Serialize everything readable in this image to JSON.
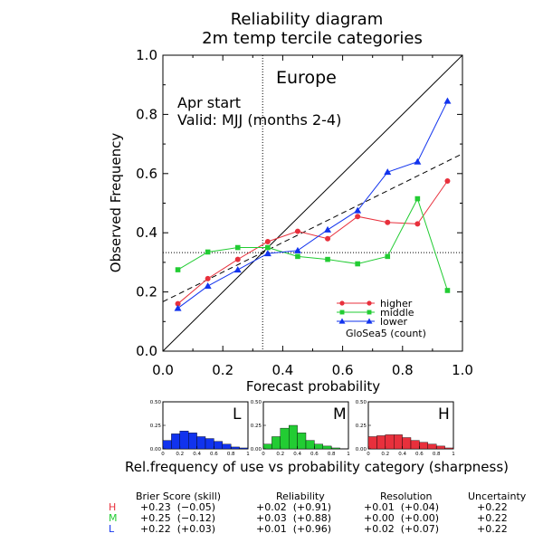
{
  "title_lines": [
    "Reliability diagram",
    "2m temp tercile categories"
  ],
  "region": "Europe",
  "annotation_lines": [
    "Apr start",
    "Valid: MJJ (months 2-4)"
  ],
  "xlabel": "Forecast probability",
  "ylabel": "Observed Frequency",
  "chart_data": {
    "type": "line",
    "xlim": [
      0,
      1
    ],
    "ylim": [
      0,
      1
    ],
    "xticks": [
      "0.0",
      "0.2",
      "0.4",
      "0.6",
      "0.8",
      "1.0"
    ],
    "yticks": [
      "0.0",
      "0.2",
      "0.4",
      "0.6",
      "0.8",
      "1.0"
    ],
    "climatology": 0.333,
    "no_skill_line": [
      [
        0.0,
        0.167
      ],
      [
        1.0,
        0.667
      ]
    ],
    "x": [
      0.05,
      0.15,
      0.25,
      0.35,
      0.45,
      0.55,
      0.65,
      0.75,
      0.85,
      0.95
    ],
    "series": [
      {
        "name": "higher",
        "color": "#e8303c",
        "marker": "circle",
        "values": [
          0.16,
          0.245,
          0.31,
          0.37,
          0.405,
          0.38,
          0.455,
          0.435,
          0.43,
          0.575
        ]
      },
      {
        "name": "middle",
        "color": "#22cc33",
        "marker": "square",
        "values": [
          0.275,
          0.335,
          0.35,
          0.35,
          0.32,
          0.31,
          0.295,
          0.32,
          0.515,
          0.205
        ]
      },
      {
        "name": "lower",
        "color": "#1133ee",
        "marker": "triangle",
        "values": [
          0.145,
          0.22,
          0.275,
          0.33,
          0.34,
          0.41,
          0.475,
          0.605,
          0.64,
          0.845
        ]
      }
    ],
    "legend_caption": "GloSea5 (count)",
    "histograms": [
      {
        "letter": "L",
        "color": "#1133ee",
        "values": [
          0.09,
          0.16,
          0.19,
          0.17,
          0.13,
          0.11,
          0.08,
          0.05,
          0.02,
          0.01
        ]
      },
      {
        "letter": "M",
        "color": "#22cc33",
        "values": [
          0.05,
          0.13,
          0.22,
          0.25,
          0.17,
          0.09,
          0.05,
          0.03,
          0.01,
          0.0
        ]
      },
      {
        "letter": "H",
        "color": "#e8303c",
        "values": [
          0.13,
          0.14,
          0.15,
          0.15,
          0.12,
          0.09,
          0.07,
          0.05,
          0.03,
          0.01
        ]
      }
    ],
    "hist_yticks": [
      "0.50",
      "0.25",
      "0.00"
    ],
    "hist_xticks": [
      "0",
      "0.2",
      "0.4",
      "0.6",
      "0.8",
      "1"
    ]
  },
  "sharpness_caption": "Rel.frequency of use vs probability category (sharpness)",
  "stats": {
    "headers": [
      "Brier Score (skill)",
      "Reliability",
      "Resolution",
      "Uncertainty"
    ],
    "rows": [
      {
        "label": "H",
        "color": "#e8303c",
        "brier": "+0.23  (−0.05)",
        "reliability": "+0.02  (+0.91)",
        "resolution": "+0.01  (+0.04)",
        "uncertainty": "+0.22"
      },
      {
        "label": "M",
        "color": "#22cc33",
        "brier": "+0.25  (−0.12)",
        "reliability": "+0.03  (+0.88)",
        "resolution": "+0.00  (+0.00)",
        "uncertainty": "+0.22"
      },
      {
        "label": "L",
        "color": "#1133ee",
        "brier": "+0.22  (+0.03)",
        "reliability": "+0.01  (+0.96)",
        "resolution": "+0.02  (+0.07)",
        "uncertainty": "+0.22"
      }
    ]
  }
}
